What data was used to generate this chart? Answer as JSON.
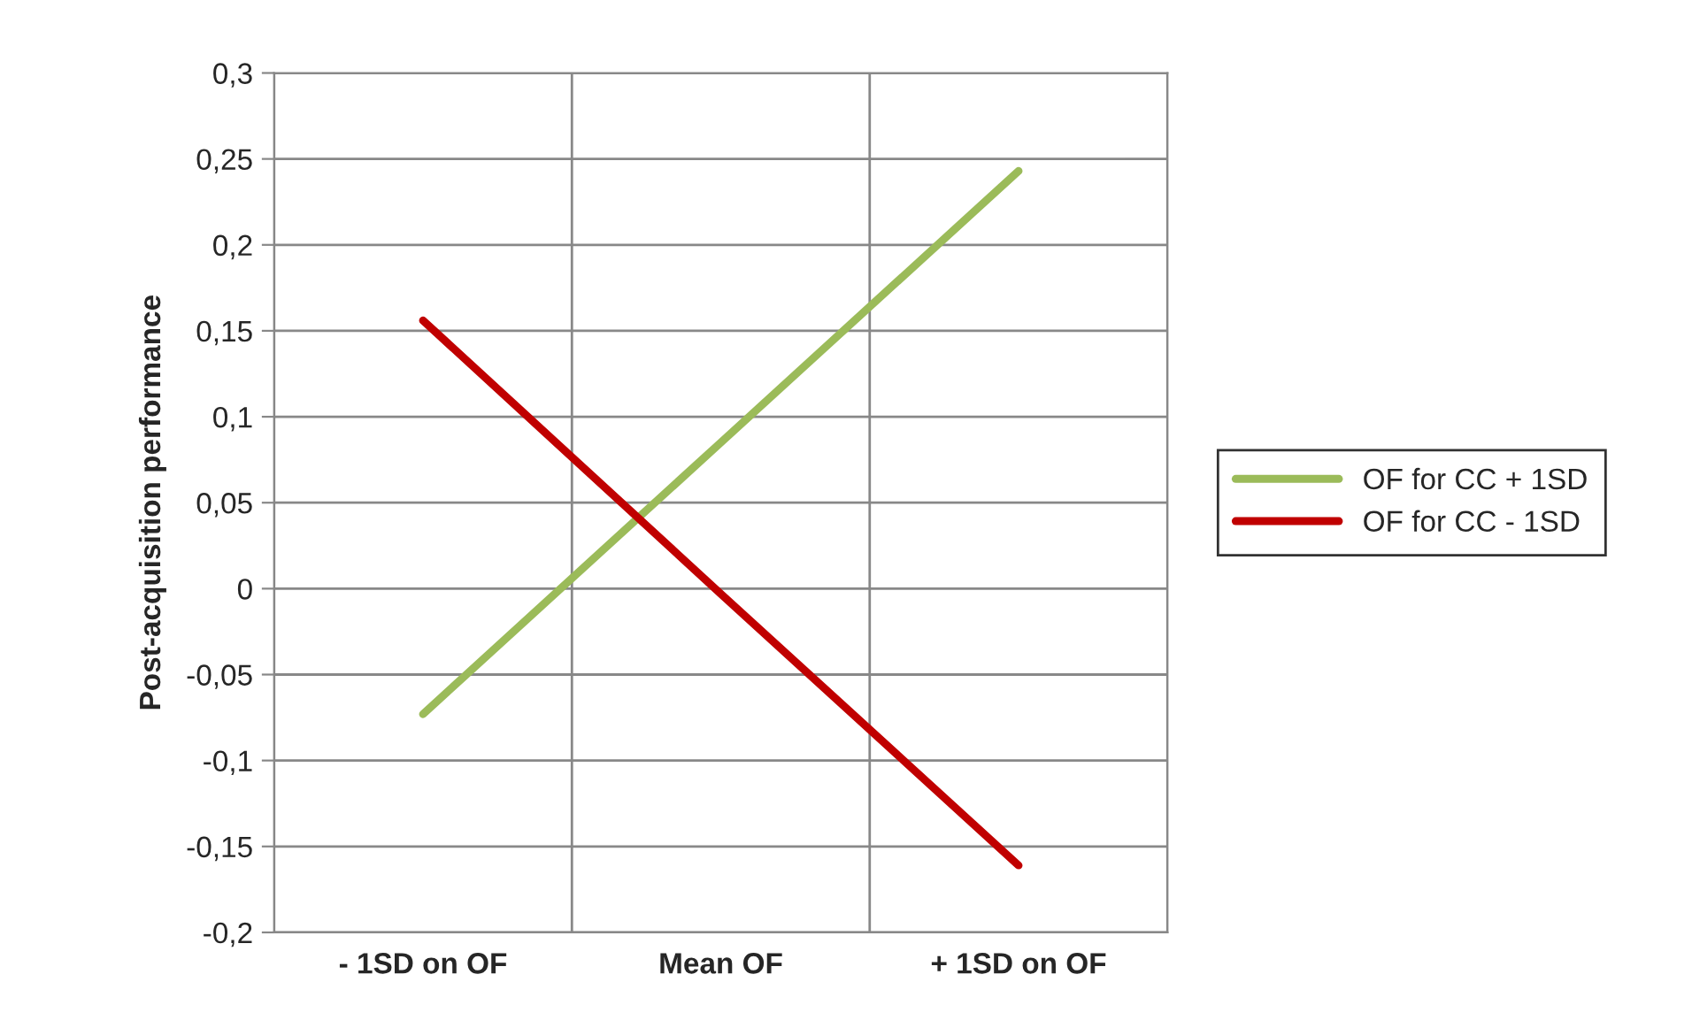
{
  "chart_data": {
    "type": "line",
    "ylabel": "Post-acquisition performance",
    "categories": [
      "- 1SD on OF",
      "Mean OF",
      "+ 1SD on OF"
    ],
    "series": [
      {
        "name": "OF for CC + 1SD",
        "color": "#9bbb59",
        "values": [
          -0.073,
          0.085,
          0.243
        ]
      },
      {
        "name": "OF for CC - 1SD",
        "color": "#c00000",
        "values": [
          0.156,
          -0.003,
          -0.161
        ]
      }
    ],
    "ylim": [
      -0.2,
      0.3
    ],
    "yticks": [
      {
        "value": -0.2,
        "label": "-0,2"
      },
      {
        "value": -0.15,
        "label": "-0,15"
      },
      {
        "value": -0.1,
        "label": "-0,1"
      },
      {
        "value": -0.05,
        "label": "-0,05"
      },
      0,
      {
        "value": 0.05,
        "label": "0,05"
      },
      {
        "value": 0.1,
        "label": "0,1"
      },
      {
        "value": 0.15,
        "label": "0,15"
      },
      {
        "value": 0.2,
        "label": "0,2"
      },
      {
        "value": 0.25,
        "label": "0,25"
      },
      {
        "value": 0.3,
        "label": "0,3"
      }
    ],
    "grid": true,
    "legend": "right",
    "marker": "none",
    "line_style": "solid"
  }
}
